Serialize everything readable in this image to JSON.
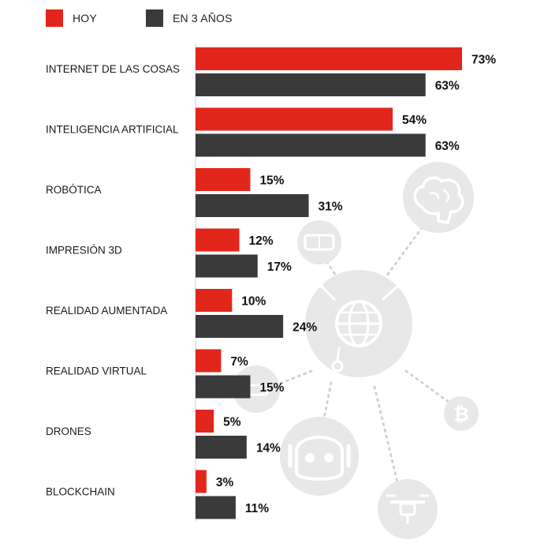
{
  "legend": {
    "today_label": "HOY",
    "future_label": "EN 3 AÑOS"
  },
  "colors": {
    "today": "#e3261c",
    "future": "#3a3a3a",
    "decor": "#e6e6e6"
  },
  "icons": [
    "brain-icon",
    "vr-headset-icon",
    "globe-network-icon",
    "robot-icon",
    "bitcoin-icon",
    "drone-icon"
  ],
  "chart_data": {
    "type": "bar",
    "orientation": "horizontal",
    "categories": [
      "INTERNET DE LAS COSAS",
      "INTELIGENCIA ARTIFICIAL",
      "ROBÓTICA",
      "IMPRESIÓN 3D",
      "REALIDAD AUMENTADA",
      "REALIDAD VIRTUAL",
      "DRONES",
      "BLOCKCHAIN"
    ],
    "series": [
      {
        "name": "HOY",
        "values": [
          73,
          54,
          15,
          12,
          10,
          7,
          5,
          3
        ]
      },
      {
        "name": "EN 3 AÑOS",
        "values": [
          63,
          63,
          31,
          17,
          24,
          15,
          14,
          11
        ]
      }
    ],
    "value_suffix": "%",
    "xlim": [
      0,
      73
    ],
    "grid": false,
    "legend_position": "top-left"
  }
}
